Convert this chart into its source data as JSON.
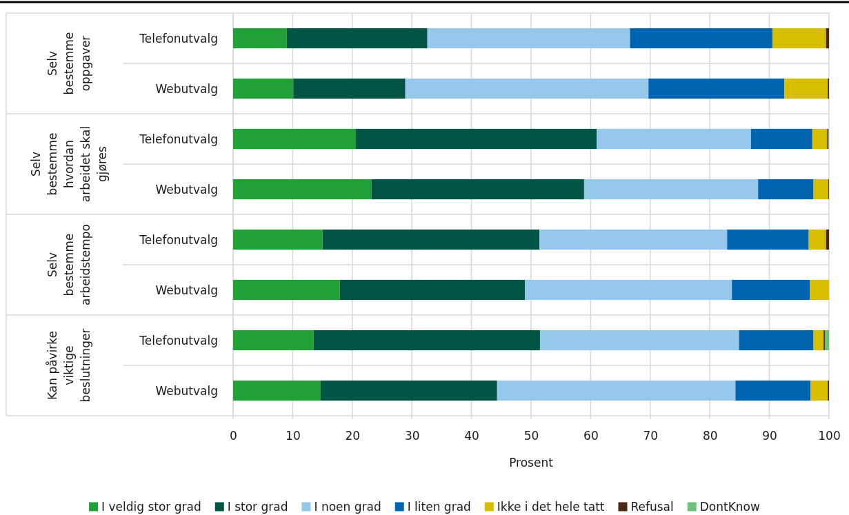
{
  "chart_data": {
    "type": "bar",
    "orientation": "horizontal",
    "stacked": true,
    "categories": [
      "Telefonutvalg",
      "Webutvalg",
      "Telefonutvalg",
      "Webutvalg",
      "Telefonutvalg",
      "Webutvalg",
      "Telefonutvalg",
      "Webutvalg"
    ],
    "series": [
      {
        "name": "I veldig stor grad",
        "color": "#21a038",
        "values": [
          9.0,
          10.1,
          20.6,
          23.2,
          15.0,
          17.9,
          13.5,
          14.7
        ]
      },
      {
        "name": "I stor grad",
        "color": "#005444",
        "values": [
          23.6,
          18.8,
          40.4,
          35.7,
          36.4,
          31.1,
          38.0,
          29.6
        ]
      },
      {
        "name": "I noen grad",
        "color": "#96c8ec",
        "values": [
          34.0,
          40.8,
          25.9,
          29.2,
          31.5,
          34.7,
          33.4,
          40.0
        ]
      },
      {
        "name": "I liten grad",
        "color": "#0064b0",
        "values": [
          23.9,
          22.8,
          10.3,
          9.3,
          13.7,
          13.1,
          12.5,
          12.6
        ]
      },
      {
        "name": "Ikke i det hele tatt",
        "color": "#d7be00",
        "values": [
          9.0,
          7.3,
          2.5,
          2.5,
          2.9,
          3.2,
          1.7,
          2.9
        ]
      },
      {
        "name": "Refusal",
        "color": "#4b2814",
        "values": [
          0.5,
          0.2,
          0.2,
          0.1,
          0.5,
          0,
          0.2,
          0.2
        ]
      },
      {
        "name": "DontKnow",
        "color": "#6dc37b",
        "values": [
          0,
          0,
          0.1,
          0,
          0,
          0,
          0.7,
          0
        ]
      }
    ],
    "xlim": [
      0,
      100
    ],
    "xticks": [
      0,
      10,
      20,
      30,
      40,
      50,
      60,
      70,
      80,
      90,
      100
    ],
    "xlabel": "Prosent",
    "grid": "x",
    "legend": "bottom",
    "annotations": [
      "Selv bestemme oppgaver",
      "Selv bestemme hvordan arbeidet skal gjøres",
      "Selv bestemme arbeidstempo",
      "Kan påvirke viktige beslutninger"
    ]
  }
}
